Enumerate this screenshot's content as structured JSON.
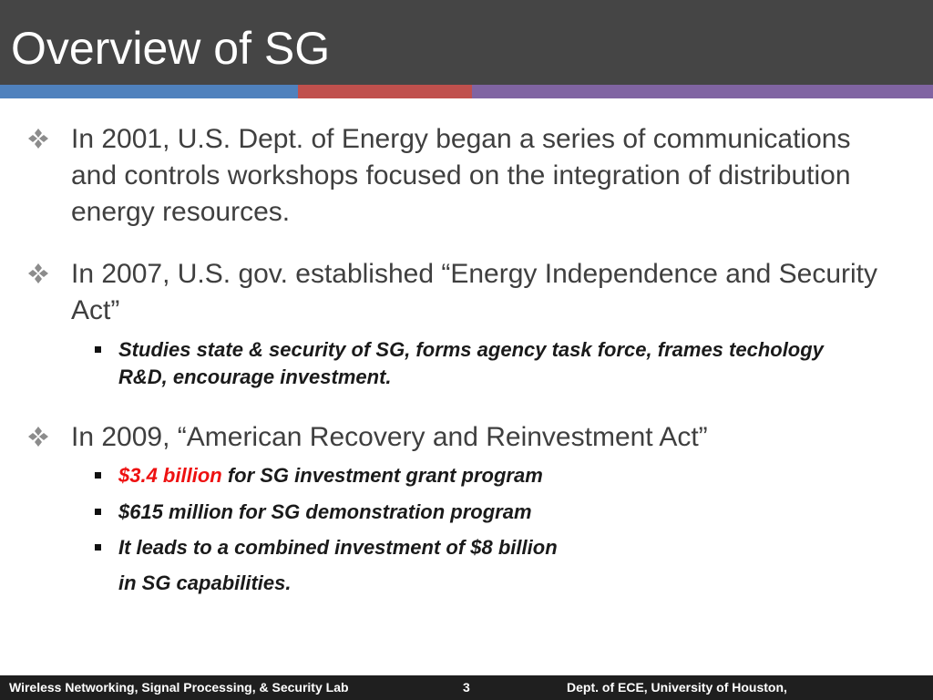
{
  "slide": {
    "title": "Overview of SG",
    "bullets": [
      {
        "icon": "diamond-bullet-icon",
        "text": "In 2001, U.S. Dept. of Energy began a series of communications and controls workshops  focused on the integration of distribution energy resources."
      },
      {
        "icon": "diamond-bullet-icon",
        "text": "In 2007, U.S. gov. established “Energy Independence and Security Act”",
        "sub": [
          "Studies state & security of SG,  forms agency task force, frames techology R&D,  encourage investment."
        ]
      },
      {
        "icon": "diamond-bullet-icon",
        "text": "In 2009,  “American Recovery and Reinvestment Act”",
        "sub_items": [
          {
            "highlight": "$3.4 billion",
            "text": " for SG investment grant program"
          },
          {
            "text": "$615 million for SG demonstration program"
          },
          {
            "text": "It leads to a combined investment of $8 billion"
          }
        ],
        "continuation": "in SG capabilities."
      }
    ]
  },
  "footer": {
    "left": "Wireless Networking, Signal Processing, & Security Lab",
    "page_number": "3",
    "right": "Dept. of ECE, University of Houston,"
  },
  "colors": {
    "title_bar": "#454545",
    "stripe_blue": "#4f81bd",
    "stripe_red": "#c0504d",
    "stripe_purple": "#8064a2",
    "highlight": "#ee1111"
  }
}
